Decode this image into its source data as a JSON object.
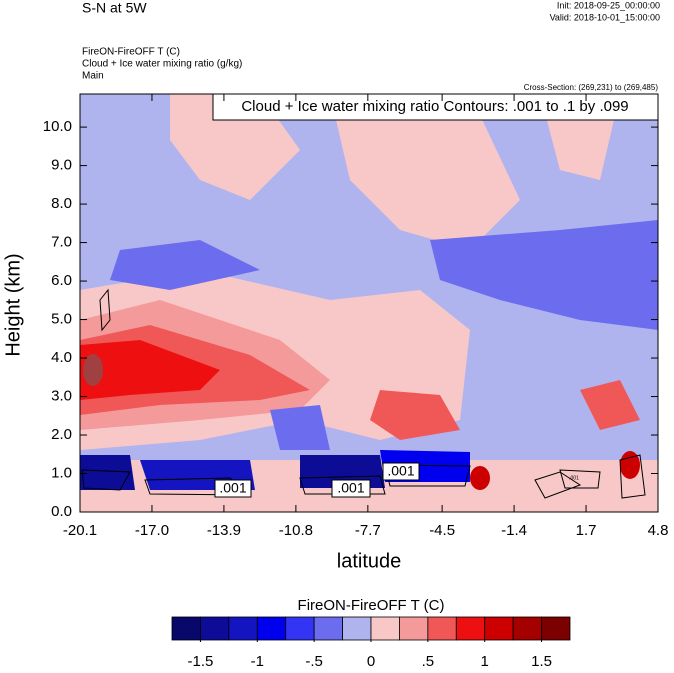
{
  "chart_data": {
    "type": "contour",
    "title": "S-N at 5W",
    "init": "Init: 2018-09-25_00:00:00",
    "valid": "Valid: 2018-10-01_15:00:00",
    "field_title": "FireON-FireOFF T   (C)",
    "contour_field_title": "Cloud + Ice water mixing ratio   (g/kg)",
    "run_name": "Main",
    "cross_section": "Cross-Section: (269,231) to (269,485)",
    "contour_info": "Cloud + Ice water mixing ratio Contours: .001 to .1 by .099",
    "contour_labels": [
      ".001",
      ".001",
      ".001",
      ".001"
    ],
    "xlabel": "latitude",
    "ylabel": "Height (km)",
    "xlim": [
      -20.1,
      4.8
    ],
    "ylim": [
      0,
      10.86
    ],
    "xticks": [
      -20.1,
      {
        "value": -17.0,
        "label": "-17.0"
      },
      -13.9,
      -10.8,
      -7.7,
      -4.5,
      -1.4,
      1.7,
      4.8
    ],
    "yticks": [
      {
        "value": 0,
        "label": "0.0"
      },
      {
        "value": 1,
        "label": "1.0"
      },
      {
        "value": 2,
        "label": "2.0"
      },
      {
        "value": 3,
        "label": "3.0"
      },
      {
        "value": 4,
        "label": "4.0"
      },
      {
        "value": 5,
        "label": "5.0"
      },
      {
        "value": 6,
        "label": "6.0"
      },
      {
        "value": 7,
        "label": "7.0"
      },
      {
        "value": 8,
        "label": "8.0"
      },
      {
        "value": 9,
        "label": "9.0"
      },
      {
        "value": 10,
        "label": "10.0"
      }
    ],
    "colorbar": {
      "title": "FireON-FireOFF T  (C)",
      "lim": [
        -1.75,
        1.75
      ],
      "colors": [
        "#08086a",
        "#0c0c96",
        "#1414c0",
        "#0000ee",
        "#3434f4",
        "#6c6cee",
        "#b0b4ee",
        "#f8c8c8",
        "#f49a9a",
        "#f05858",
        "#ee1010",
        "#cc0000",
        "#a40000",
        "#7c0000"
      ],
      "ticks": [
        -1.5,
        -1,
        {
          "value": -0.5,
          "label": "-.5"
        },
        0,
        {
          "value": 0.5,
          "label": ".5"
        },
        1,
        1.5
      ]
    }
  }
}
